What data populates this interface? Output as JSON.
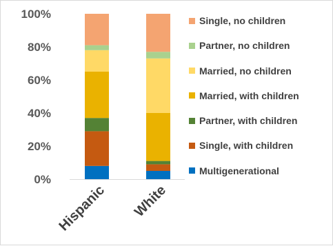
{
  "chart_data": {
    "type": "bar",
    "stacked": true,
    "percent": true,
    "categories": [
      "Hispanic",
      "White"
    ],
    "series": [
      {
        "name": "Multigenerational",
        "color": "#0070c0",
        "values": [
          8,
          5
        ]
      },
      {
        "name": "Single, with children",
        "color": "#c55a11",
        "values": [
          21,
          4
        ]
      },
      {
        "name": "Partner, with children",
        "color": "#548235",
        "values": [
          8,
          2
        ]
      },
      {
        "name": "Married, with children",
        "color": "#eab200",
        "values": [
          28,
          29
        ]
      },
      {
        "name": "Married, no children",
        "color": "#ffd966",
        "values": [
          13,
          33
        ]
      },
      {
        "name": "Partner, no children",
        "color": "#a9d18e",
        "values": [
          3,
          4
        ]
      },
      {
        "name": "Single, no children",
        "color": "#f4a471",
        "values": [
          19,
          23
        ]
      }
    ],
    "ylim": [
      0,
      100
    ],
    "yticks": [
      0,
      20,
      40,
      60,
      80,
      100
    ],
    "ytick_labels": [
      "0%",
      "20%",
      "40%",
      "60%",
      "80%",
      "100%"
    ],
    "legend_position": "right",
    "grid": false,
    "axis_color": "#d9d9d9"
  }
}
